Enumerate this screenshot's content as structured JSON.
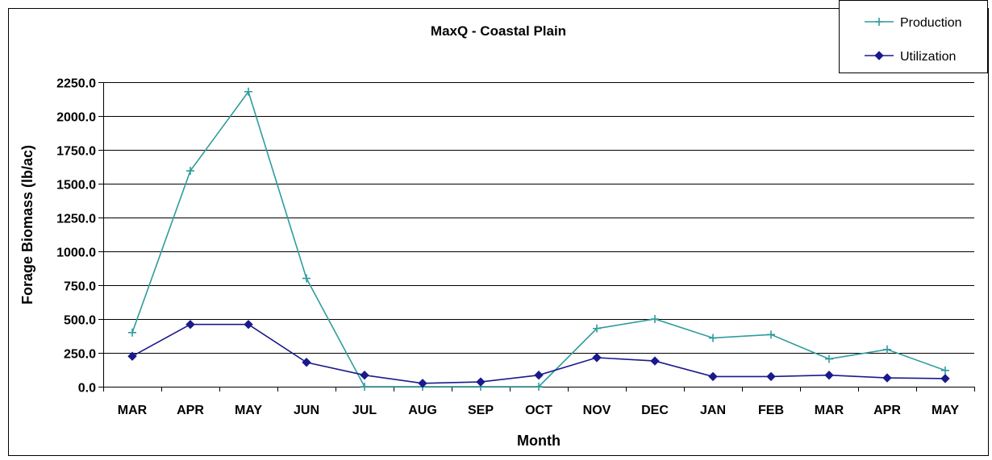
{
  "chart_data": {
    "type": "line",
    "title": "MaxQ - Coastal Plain",
    "xlabel": "Month",
    "ylabel": "Forage Biomass (lb/ac)",
    "categories": [
      "MAR",
      "APR",
      "MAY",
      "JUN",
      "JUL",
      "AUG",
      "SEP",
      "OCT",
      "NOV",
      "DEC",
      "JAN",
      "FEB",
      "MAR",
      "APR",
      "MAY"
    ],
    "ylim": [
      0,
      2250
    ],
    "yticks": [
      "0.0",
      "250.0",
      "500.0",
      "750.0",
      "1000.0",
      "1250.0",
      "1500.0",
      "1750.0",
      "2000.0",
      "2250.0"
    ],
    "grid": true,
    "legend_position": "top-right",
    "series": [
      {
        "name": "Production",
        "color": "#2e9c9c",
        "marker": "plus",
        "values": [
          400,
          1595,
          2180,
          800,
          0,
          0,
          0,
          0,
          430,
          500,
          360,
          385,
          205,
          275,
          120
        ]
      },
      {
        "name": "Utilization",
        "color": "#1a1a8c",
        "marker": "diamond",
        "values": [
          225,
          460,
          460,
          180,
          85,
          25,
          35,
          85,
          215,
          190,
          75,
          75,
          85,
          65,
          60
        ]
      }
    ]
  }
}
